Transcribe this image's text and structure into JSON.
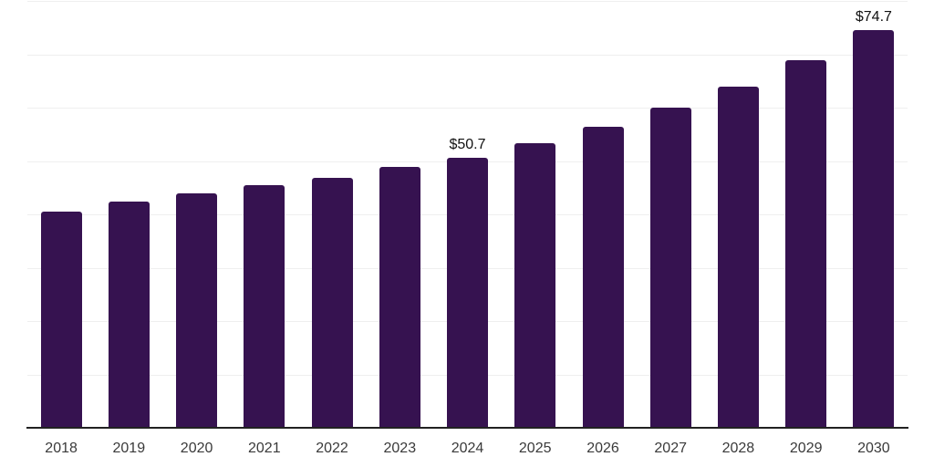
{
  "chart_data": {
    "type": "bar",
    "title": "",
    "xlabel": "",
    "ylabel": "",
    "categories": [
      "2018",
      "2019",
      "2020",
      "2021",
      "2022",
      "2023",
      "2024",
      "2025",
      "2026",
      "2027",
      "2028",
      "2029",
      "2030"
    ],
    "values": [
      40.7,
      42.6,
      44.1,
      45.6,
      47.0,
      49.0,
      50.7,
      53.5,
      56.6,
      60.2,
      64.1,
      69.1,
      74.7
    ],
    "data_labels": [
      {
        "category": "2024",
        "text": "$50.7"
      },
      {
        "category": "2030",
        "text": "$74.7"
      }
    ],
    "ylim": [
      0,
      80
    ],
    "gridline_values": [
      10,
      20,
      30,
      40,
      50,
      60,
      70,
      80
    ],
    "grid": "horizontal",
    "y_axis_tick_labels_visible": false,
    "legend": "none"
  },
  "colors": {
    "bar": "#361250",
    "axis_line": "#222222",
    "gridline": "#efefef",
    "data_label": "#111111",
    "tick_label": "#3a3a3a",
    "background": "#ffffff"
  }
}
